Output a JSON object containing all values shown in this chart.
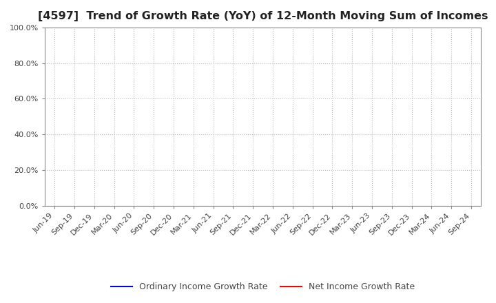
{
  "title": "[4597]  Trend of Growth Rate (YoY) of 12-Month Moving Sum of Incomes",
  "title_fontsize": 11.5,
  "title_color": "#222222",
  "background_color": "#ffffff",
  "plot_bg_color": "#ffffff",
  "ylim": [
    0.0,
    1.0
  ],
  "yticks": [
    0.0,
    0.2,
    0.4,
    0.6,
    0.8,
    1.0
  ],
  "ytick_labels": [
    "0.0%",
    "20.0%",
    "40.0%",
    "60.0%",
    "80.0%",
    "100.0%"
  ],
  "xtick_labels": [
    "Jun-19",
    "Sep-19",
    "Dec-19",
    "Mar-20",
    "Jun-20",
    "Sep-20",
    "Dec-20",
    "Mar-21",
    "Jun-21",
    "Sep-21",
    "Dec-21",
    "Mar-22",
    "Jun-22",
    "Sep-22",
    "Dec-22",
    "Mar-23",
    "Jun-23",
    "Sep-23",
    "Dec-23",
    "Mar-24",
    "Jun-24",
    "Sep-24"
  ],
  "grid_color": "#bbbbbb",
  "grid_linestyle": ":",
  "grid_linewidth": 0.8,
  "line1_label": "Ordinary Income Growth Rate",
  "line1_color": "#0000ff",
  "line2_label": "Net Income Growth Rate",
  "line2_color": "#ff0000",
  "line_width": 1.5,
  "legend_fontsize": 9,
  "tick_fontsize": 8,
  "tick_color": "#444444",
  "spine_color": "#888888"
}
